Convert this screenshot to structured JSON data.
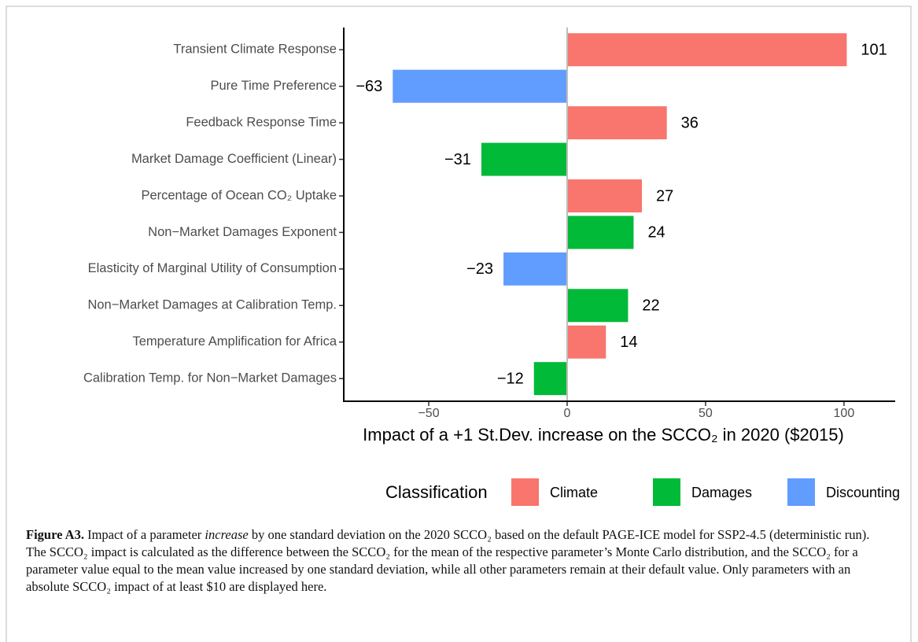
{
  "chart_data": {
    "type": "bar",
    "orientation": "horizontal",
    "categories": [
      "Transient Climate Response",
      "Pure Time Preference",
      "Feedback Response Time",
      "Market Damage Coefficient (Linear)",
      "Percentage of Ocean CO₂ Uptake",
      "Non−Market Damages Exponent",
      "Elasticity of Marginal Utility of Consumption",
      "Non−Market Damages at Calibration Temp.",
      "Temperature Amplification for Africa",
      "Calibration Temp. for Non−Market Damages"
    ],
    "values": [
      101,
      -63,
      36,
      -31,
      27,
      24,
      -23,
      22,
      14,
      -12
    ],
    "value_labels": [
      "101",
      "−63",
      "36",
      "−31",
      "27",
      "24",
      "−23",
      "22",
      "14",
      "−12"
    ],
    "classification": [
      "Climate",
      "Discounting",
      "Climate",
      "Damages",
      "Climate",
      "Damages",
      "Discounting",
      "Damages",
      "Climate",
      "Damages"
    ],
    "xlim": [
      -80.7,
      118.5
    ],
    "xticks": [
      {
        "value": -50,
        "label": "−50"
      },
      0,
      50,
      100
    ],
    "x_label": "Impact of a +1 St.Dev. increase on the SCCO₂ in 2020 ($2015)",
    "legend": {
      "title": "Classification",
      "position": "bottom",
      "items": [
        {
          "name": "Climate",
          "color": "#F8766D"
        },
        {
          "name": "Damages",
          "color": "#00BA38"
        },
        {
          "name": "Discounting",
          "color": "#619CFF"
        }
      ]
    }
  },
  "caption": {
    "label": "Figure A3.",
    "text_before": " Impact of a parameter ",
    "emphasis": "increase",
    "text_after": " by one standard deviation on the 2020 SCCO₂ based on the default PAGE-ICE model for SSP2-4.5 (deterministic run). The SCCO₂ impact is calculated as the difference between the SCCO₂ for the mean of the respective parameter’s Monte Carlo distribution, and the SCCO₂ for a parameter value equal to the mean value increased by one standard deviation, while all other parameters remain at their default value. Only parameters with an absolute SCCO₂ impact of at least $10 are displayed here."
  }
}
